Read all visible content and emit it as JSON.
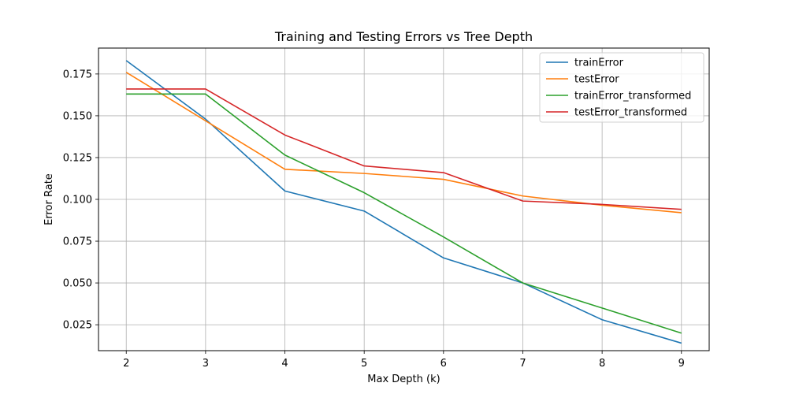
{
  "chart_data": {
    "type": "line",
    "title": "Training and Testing Errors vs Tree Depth",
    "xlabel": "Max Depth (k)",
    "ylabel": "Error Rate",
    "x": [
      2,
      3,
      4,
      5,
      6,
      7,
      8,
      9
    ],
    "xlim": [
      1.65,
      9.35
    ],
    "ylim": [
      0.0095,
      0.1905
    ],
    "xticks": [
      2,
      3,
      4,
      5,
      6,
      7,
      8,
      9
    ],
    "yticks": [
      0.025,
      0.05,
      0.075,
      0.1,
      0.125,
      0.15,
      0.175
    ],
    "ytick_labels": [
      "0.025",
      "0.050",
      "0.075",
      "0.100",
      "0.125",
      "0.150",
      "0.175"
    ],
    "grid": true,
    "legend_position": "top-right",
    "series": [
      {
        "name": "trainError",
        "color": "#1f77b4",
        "values": [
          0.183,
          0.148,
          0.105,
          0.093,
          0.065,
          0.05,
          0.028,
          0.014
        ]
      },
      {
        "name": "testError",
        "color": "#ff7f0e",
        "values": [
          0.176,
          0.147,
          0.118,
          0.1155,
          0.112,
          0.102,
          0.0965,
          0.092
        ]
      },
      {
        "name": "trainError_transformed",
        "color": "#2ca02c",
        "values": [
          0.163,
          0.163,
          0.1265,
          0.104,
          0.0775,
          0.05,
          0.035,
          0.02
        ]
      },
      {
        "name": "testError_transformed",
        "color": "#d62728",
        "values": [
          0.166,
          0.166,
          0.1385,
          0.12,
          0.116,
          0.099,
          0.097,
          0.094
        ]
      }
    ]
  }
}
